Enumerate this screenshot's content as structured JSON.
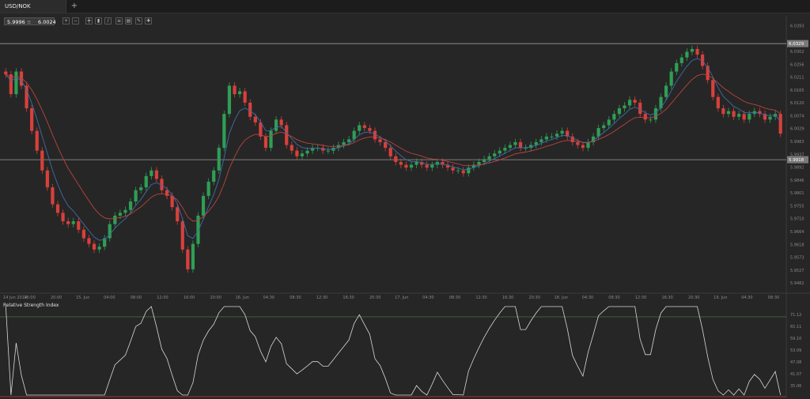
{
  "tab": {
    "label": "USD/NOK",
    "add_label": "+"
  },
  "quote": {
    "bid": "5.9996",
    "separator": "≡",
    "ask": "6.0024"
  },
  "toolbar_icons": [
    "zoom-in-icon",
    "zoom-out-icon",
    "bar-chart-icon",
    "candles-icon",
    "line-chart-icon",
    "indicators-icon",
    "template-icon",
    "drawing-icon",
    "crosshair-icon"
  ],
  "colors": {
    "bull": "#2f9e55",
    "bear": "#d8403c",
    "ema_fast": "#3e6ea8",
    "ema_slow": "#b84440",
    "rsi_line": "#d8d8d8",
    "rsi_upper": "#3d7a3d",
    "rsi_lower": "#a53333",
    "background": "#262626"
  },
  "price_axis": {
    "ticks": [
      "6.0393",
      "6.0302",
      "6.0256",
      "6.0211",
      "6.0165",
      "6.0120",
      "6.0074",
      "6.0029",
      "5.9983",
      "5.9937",
      "5.9892",
      "5.9846",
      "5.9801",
      "5.9755",
      "5.9710",
      "5.9664",
      "5.9618",
      "5.9573",
      "5.9527",
      "5.9482"
    ]
  },
  "horizontal_lines": [
    {
      "label": "6.0329",
      "value": 6.0329
    },
    {
      "label": "5.9918",
      "value": 5.9918
    }
  ],
  "time_axis": {
    "labels": [
      "14 Jun 2014",
      "16:00",
      "20:00",
      "15. Jun",
      "04:00",
      "08:00",
      "12:00",
      "16:00",
      "20:00",
      "16. Jun",
      "04:30",
      "08:30",
      "12:30",
      "16:30",
      "20:30",
      "17. Jun",
      "04:30",
      "08:30",
      "12:30",
      "16:30",
      "20:30",
      "18. Jun",
      "04:30",
      "08:30",
      "12:30",
      "16:30",
      "20:30",
      "19. Jun",
      "04:30",
      "08:30"
    ]
  },
  "rsi": {
    "title": "Relative Strength Index",
    "ticks": [
      "71.12",
      "65.11",
      "59.10",
      "53.09",
      "47.08",
      "41.07",
      "35.06"
    ],
    "upper_level": 70,
    "lower_level": 30
  },
  "chart_data": {
    "type": "candlestick",
    "symbol": "USD/NOK",
    "ylim": [
      5.9468,
      6.0405
    ],
    "close": [
      6.022,
      6.015,
      6.023,
      6.018,
      6.01,
      6.002,
      5.995,
      5.988,
      5.982,
      5.976,
      5.973,
      5.97,
      5.969,
      5.97,
      5.967,
      5.964,
      5.962,
      5.96,
      5.961,
      5.964,
      5.969,
      5.972,
      5.973,
      5.974,
      5.977,
      5.981,
      5.982,
      5.986,
      5.988,
      5.985,
      5.981,
      5.979,
      5.975,
      5.97,
      5.96,
      5.953,
      5.962,
      5.972,
      5.979,
      5.984,
      5.988,
      5.996,
      6.008,
      6.018,
      6.015,
      6.016,
      6.012,
      6.007,
      6.005,
      6.0,
      5.996,
      6.002,
      6.006,
      6.004,
      5.997,
      5.995,
      5.993,
      5.994,
      5.995,
      5.996,
      5.996,
      5.995,
      5.995,
      5.996,
      5.997,
      5.998,
      5.999,
      6.002,
      6.004,
      6.003,
      6.002,
      5.999,
      5.998,
      5.996,
      5.993,
      5.991,
      5.99,
      5.989,
      5.99,
      5.991,
      5.99,
      5.989,
      5.99,
      5.991,
      5.99,
      5.989,
      5.988,
      5.988,
      5.987,
      5.989,
      5.99,
      5.991,
      5.992,
      5.993,
      5.994,
      5.995,
      5.996,
      5.997,
      5.998,
      5.996,
      5.996,
      5.997,
      5.998,
      5.999,
      6.0,
      6.0,
      6.001,
      6.002,
      6.0,
      5.998,
      5.997,
      5.996,
      5.998,
      6.0,
      6.003,
      6.004,
      6.006,
      6.008,
      6.01,
      6.011,
      6.013,
      6.012,
      6.008,
      6.006,
      6.006,
      6.01,
      6.014,
      6.018,
      6.023,
      6.026,
      6.028,
      6.03,
      6.031,
      6.029,
      6.025,
      6.02,
      6.014,
      6.01,
      6.008,
      6.009,
      6.007,
      6.008,
      6.006,
      6.008,
      6.009,
      6.008,
      6.006,
      6.007,
      6.008,
      6.001
    ]
  }
}
